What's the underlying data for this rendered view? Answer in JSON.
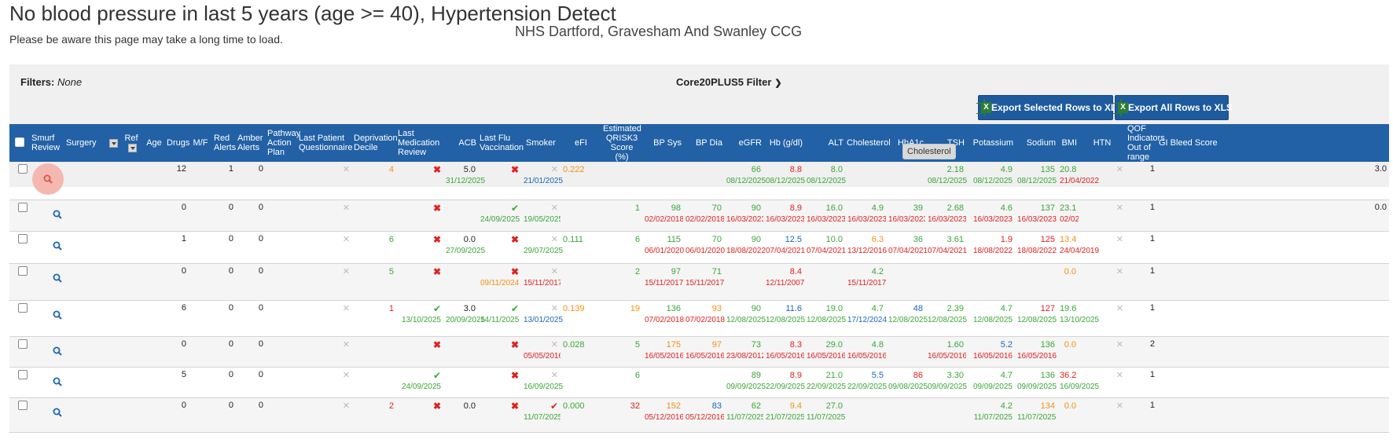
{
  "page": {
    "title": "No blood pressure in last 5 years (age >= 40), Hypertension Detect",
    "subtitle": "Please be aware this page may take a long time to load.",
    "ccg": "NHS Dartford, Gravesham And Swanley CCG"
  },
  "filters": {
    "label": "Filters:",
    "value": "None"
  },
  "core20_filter": {
    "label": "Core20PLUS5 Filter",
    "icon": "chevron-down-icon"
  },
  "export": {
    "selected_label": "Export Selected Rows to XLS",
    "all_label": "Export All Rows to XLS",
    "icon": "excel-icon"
  },
  "tooltip": "Cholesterol",
  "colors": {
    "header_bg": "#2261a6",
    "green": "#3aa637",
    "red": "#e02020",
    "orange": "#f39012",
    "blue": "#1a66b8",
    "highlight": "#f4b8b0"
  },
  "columns": {
    "smurf": "Smurf Review",
    "surgery": "Surgery",
    "ref": "Ref",
    "age": "Age",
    "drugs": "Drugs",
    "mf": "M/F",
    "red": "Red Alerts",
    "amber": "Amber Alerts",
    "pathway": "Pathway Action Plan",
    "lpq": "Last Patient Questionnaire",
    "dep": "Deprivation Decile",
    "lmr": "Last Medication Review",
    "acb": "ACB",
    "flu": "Last Flu Vaccination",
    "smoker": "Smoker",
    "efi": "eFI",
    "qrisk": "Estimated QRISK3 Score (%)",
    "bpsys": "BP Sys",
    "bpdia": "BP Dia",
    "egfr": "eGFR",
    "hb": "Hb (g/dl)",
    "alt": "ALT",
    "chol": "Cholesterol",
    "hba1c": "HbA1c",
    "tsh": "TSH",
    "k": "Potassium",
    "na": "Sodium",
    "bmi": "BMI",
    "htn": "HTN",
    "qof": "QOF Indicators Out of range",
    "gi": "GI Bleed Score"
  },
  "rows": [
    {
      "drugs": "12",
      "red": "1",
      "amber": "0",
      "dep": {
        "v": "4",
        "c": "orange"
      },
      "lmr": "cross",
      "acb": {
        "v": "5.0",
        "c": "black",
        "d": "31/12/2025",
        "dc": "green"
      },
      "flu": "cross",
      "smoker": {
        "v": "✕",
        "c": "grey",
        "d": "21/01/2025",
        "dc": "blue"
      },
      "efi": {
        "v": "0.222",
        "c": "orange"
      },
      "qrisk": null,
      "bpsys": null,
      "bpdia": null,
      "egfr": {
        "v": "66",
        "c": "green",
        "d": "08/12/2025",
        "dc": "green"
      },
      "hb": {
        "v": "8.8",
        "c": "red",
        "d": "08/12/2025",
        "dc": "green"
      },
      "alt": {
        "v": "8.0",
        "c": "green",
        "d": "08/12/2025",
        "dc": "green"
      },
      "chol": null,
      "hba1c": null,
      "tsh": {
        "v": "2.18",
        "c": "green",
        "d": "08/12/2025",
        "dc": "green"
      },
      "k": {
        "v": "4.9",
        "c": "green",
        "d": "08/12/2025",
        "dc": "green"
      },
      "na": {
        "v": "135",
        "c": "green",
        "d": "08/12/2025",
        "dc": "green"
      },
      "bmi": {
        "v": "20.8",
        "c": "green",
        "d": "21/04/2022",
        "dc": "red"
      },
      "qof": "1",
      "gi": "3.0"
    },
    {
      "drugs": "0",
      "red": "0",
      "amber": "0",
      "dep": null,
      "lmr": "cross",
      "acb": null,
      "flu": {
        "tick": true,
        "d": "24/09/2025",
        "dc": "green"
      },
      "smoker": {
        "v": "✕",
        "c": "grey",
        "d": "19/05/2025",
        "dc": "green"
      },
      "efi": null,
      "qrisk": {
        "v": "1",
        "c": "green"
      },
      "bpsys": {
        "v": "98",
        "c": "green",
        "d": "02/02/2018",
        "dc": "red"
      },
      "bpdia": {
        "v": "70",
        "c": "green",
        "d": "02/02/2018",
        "dc": "red"
      },
      "egfr": {
        "v": "90",
        "c": "green",
        "d": "16/03/2023",
        "dc": "red"
      },
      "hb": {
        "v": "8.9",
        "c": "red",
        "d": "16/03/2023",
        "dc": "red"
      },
      "alt": {
        "v": "16.0",
        "c": "green",
        "d": "16/03/2023",
        "dc": "red"
      },
      "chol": {
        "v": "4.9",
        "c": "green",
        "d": "16/03/2023",
        "dc": "red"
      },
      "hba1c": {
        "v": "39",
        "c": "green",
        "d": "16/03/2023",
        "dc": "red"
      },
      "tsh": {
        "v": "2.68",
        "c": "green",
        "d": "16/03/2023",
        "dc": "red"
      },
      "k": {
        "v": "4.6",
        "c": "green",
        "d": "16/03/2023",
        "dc": "red"
      },
      "na": {
        "v": "137",
        "c": "green",
        "d": "16/03/2023",
        "dc": "red"
      },
      "bmi": {
        "v": "23.1",
        "c": "green",
        "d": "02/02/2018",
        "dc": "red"
      },
      "qof": "1",
      "gi": "0.0"
    },
    {
      "drugs": "1",
      "red": "0",
      "amber": "0",
      "dep": {
        "v": "6",
        "c": "green"
      },
      "lmr": "cross",
      "acb": {
        "v": "0.0",
        "c": "black",
        "d": "27/09/2025",
        "dc": "green"
      },
      "flu": "cross",
      "smoker": {
        "v": "✕",
        "c": "grey",
        "d": "29/07/2025",
        "dc": "green"
      },
      "efi": {
        "v": "0.111",
        "c": "green"
      },
      "qrisk": {
        "v": "6",
        "c": "green"
      },
      "bpsys": {
        "v": "115",
        "c": "green",
        "d": "06/01/2020",
        "dc": "red"
      },
      "bpdia": {
        "v": "70",
        "c": "green",
        "d": "06/01/2020",
        "dc": "red"
      },
      "egfr": {
        "v": "90",
        "c": "green",
        "d": "18/08/2022",
        "dc": "red"
      },
      "hb": {
        "v": "12.5",
        "c": "blue",
        "d": "07/04/2021",
        "dc": "red"
      },
      "alt": {
        "v": "10.0",
        "c": "green",
        "d": "07/04/2021",
        "dc": "red"
      },
      "chol": {
        "v": "6.3",
        "c": "orange",
        "d": "13/12/2016",
        "dc": "red"
      },
      "hba1c": {
        "v": "36",
        "c": "green",
        "d": "07/04/2021",
        "dc": "red"
      },
      "tsh": {
        "v": "3.61",
        "c": "green",
        "d": "07/04/2021",
        "dc": "red"
      },
      "k": {
        "v": "1.9",
        "c": "red",
        "d": "18/08/2022",
        "dc": "red"
      },
      "na": {
        "v": "125",
        "c": "red",
        "d": "18/08/2022",
        "dc": "red"
      },
      "bmi": {
        "v": "13.4",
        "c": "orange",
        "d": "24/04/2019",
        "dc": "red"
      },
      "qof": "1",
      "gi": ""
    },
    {
      "drugs": "0",
      "red": "0",
      "amber": "0",
      "dep": {
        "v": "5",
        "c": "green"
      },
      "lmr": "cross",
      "acb": null,
      "flu": {
        "cross": true,
        "d": "09/11/2024",
        "dc": "orange"
      },
      "smoker": {
        "v": "✕",
        "c": "grey",
        "d": "15/11/2017",
        "dc": "red"
      },
      "efi": null,
      "qrisk": {
        "v": "2",
        "c": "green"
      },
      "bpsys": {
        "v": "97",
        "c": "green",
        "d": "15/11/2017",
        "dc": "red"
      },
      "bpdia": {
        "v": "71",
        "c": "green",
        "d": "15/11/2017",
        "dc": "red"
      },
      "egfr": null,
      "hb": {
        "v": "8.4",
        "c": "red",
        "d": "12/11/2007",
        "dc": "red"
      },
      "alt": null,
      "chol": {
        "v": "4.2",
        "c": "green",
        "d": "15/11/2017",
        "dc": "red"
      },
      "hba1c": null,
      "tsh": null,
      "k": null,
      "na": null,
      "bmi": {
        "v": "0.0",
        "c": "orange"
      },
      "qof": "1",
      "gi": ""
    },
    {
      "drugs": "6",
      "red": "0",
      "amber": "0",
      "dep": {
        "v": "1",
        "c": "red"
      },
      "lmr": {
        "tick": true,
        "d": "13/10/2025",
        "dc": "green"
      },
      "acb": {
        "v": "3.0",
        "c": "black",
        "d": "20/09/2025",
        "dc": "green"
      },
      "flu": {
        "tick": true,
        "d": "14/11/2025",
        "dc": "green"
      },
      "smoker": {
        "v": "✕",
        "c": "grey",
        "d": "13/01/2025",
        "dc": "blue"
      },
      "efi": {
        "v": "0.139",
        "c": "orange"
      },
      "qrisk": {
        "v": "19",
        "c": "orange"
      },
      "bpsys": {
        "v": "136",
        "c": "green",
        "d": "07/02/2018",
        "dc": "red"
      },
      "bpdia": {
        "v": "93",
        "c": "orange",
        "d": "07/02/2018",
        "dc": "red"
      },
      "egfr": {
        "v": "90",
        "c": "green",
        "d": "12/08/2025",
        "dc": "green"
      },
      "hb": {
        "v": "11.6",
        "c": "blue",
        "d": "12/08/2025",
        "dc": "green"
      },
      "alt": {
        "v": "19.0",
        "c": "green",
        "d": "12/08/2025",
        "dc": "green"
      },
      "chol": {
        "v": "4.7",
        "c": "green",
        "d": "17/12/2024",
        "dc": "blue"
      },
      "hba1c": {
        "v": "48",
        "c": "blue",
        "d": "12/08/2025",
        "dc": "green"
      },
      "tsh": {
        "v": "2.39",
        "c": "green",
        "d": "12/08/2025",
        "dc": "green"
      },
      "k": {
        "v": "4.7",
        "c": "green",
        "d": "12/08/2025",
        "dc": "green"
      },
      "na": {
        "v": "127",
        "c": "red",
        "d": "12/08/2025",
        "dc": "green"
      },
      "bmi": {
        "v": "19.6",
        "c": "green",
        "d": "13/10/2025",
        "dc": "green"
      },
      "qof": "1",
      "gi": ""
    },
    {
      "drugs": "0",
      "red": "0",
      "amber": "0",
      "dep": null,
      "lmr": "cross",
      "acb": null,
      "flu": "cross",
      "smoker": {
        "v": "✕",
        "c": "grey",
        "d": "05/05/2016",
        "dc": "red"
      },
      "efi": {
        "v": "0.028",
        "c": "green"
      },
      "qrisk": {
        "v": "5",
        "c": "green"
      },
      "bpsys": {
        "v": "175",
        "c": "orange",
        "d": "16/05/2016",
        "dc": "red"
      },
      "bpdia": {
        "v": "97",
        "c": "orange",
        "d": "16/05/2016",
        "dc": "red"
      },
      "egfr": {
        "v": "73",
        "c": "green",
        "d": "23/08/2012",
        "dc": "red"
      },
      "hb": {
        "v": "8.3",
        "c": "red",
        "d": "16/05/2016",
        "dc": "red"
      },
      "alt": {
        "v": "29.0",
        "c": "green",
        "d": "16/05/2016",
        "dc": "red"
      },
      "chol": {
        "v": "4.8",
        "c": "green",
        "d": "16/05/2016",
        "dc": "red"
      },
      "hba1c": null,
      "tsh": {
        "v": "1.60",
        "c": "green",
        "d": "16/05/2016",
        "dc": "red"
      },
      "k": {
        "v": "5.2",
        "c": "blue",
        "d": "16/05/2016",
        "dc": "red"
      },
      "na": {
        "v": "136",
        "c": "green",
        "d": "16/05/2016",
        "dc": "red"
      },
      "bmi": {
        "v": "0.0",
        "c": "orange"
      },
      "qof": "2",
      "gi": ""
    },
    {
      "drugs": "5",
      "red": "0",
      "amber": "0",
      "dep": null,
      "lmr": {
        "tick": true,
        "d": "24/09/2025",
        "dc": "green"
      },
      "acb": null,
      "flu": "cross",
      "smoker": {
        "v": "✕",
        "c": "grey",
        "d": "16/09/2025",
        "dc": "green"
      },
      "efi": null,
      "qrisk": {
        "v": "6",
        "c": "green"
      },
      "bpsys": null,
      "bpdia": null,
      "egfr": {
        "v": "89",
        "c": "green",
        "d": "09/09/2025",
        "dc": "green"
      },
      "hb": {
        "v": "8.9",
        "c": "red",
        "d": "22/09/2025",
        "dc": "green"
      },
      "alt": {
        "v": "21.0",
        "c": "green",
        "d": "22/09/2025",
        "dc": "green"
      },
      "chol": {
        "v": "5.5",
        "c": "blue",
        "d": "22/09/2025",
        "dc": "green"
      },
      "hba1c": {
        "v": "86",
        "c": "red",
        "d": "09/08/2025",
        "dc": "green"
      },
      "tsh": {
        "v": "3.30",
        "c": "green",
        "d": "09/09/2025",
        "dc": "green"
      },
      "k": {
        "v": "4.7",
        "c": "green",
        "d": "09/09/2025",
        "dc": "green"
      },
      "na": {
        "v": "136",
        "c": "green",
        "d": "09/09/2025",
        "dc": "green"
      },
      "bmi": {
        "v": "36.2",
        "c": "red",
        "d": "16/09/2025",
        "dc": "green"
      },
      "qof": "1",
      "gi": ""
    },
    {
      "drugs": "0",
      "red": "0",
      "amber": "0",
      "dep": {
        "v": "2",
        "c": "red"
      },
      "lmr": "cross",
      "acb": {
        "v": "0.0",
        "c": "black"
      },
      "flu": "cross",
      "smoker": {
        "tick_red": true,
        "d": "11/07/2025",
        "dc": "green"
      },
      "efi": {
        "v": "0.000",
        "c": "green"
      },
      "qrisk": {
        "v": "32",
        "c": "red"
      },
      "bpsys": {
        "v": "152",
        "c": "orange",
        "d": "05/12/2016",
        "dc": "red"
      },
      "bpdia": {
        "v": "83",
        "c": "blue",
        "d": "05/12/2016",
        "dc": "red"
      },
      "egfr": {
        "v": "62",
        "c": "green",
        "d": "11/07/2025",
        "dc": "green"
      },
      "hb": {
        "v": "9.4",
        "c": "orange",
        "d": "21/07/2025",
        "dc": "green"
      },
      "alt": {
        "v": "27.0",
        "c": "green",
        "d": "11/07/2025",
        "dc": "green"
      },
      "chol": null,
      "hba1c": null,
      "tsh": null,
      "k": {
        "v": "4.2",
        "c": "green",
        "d": "11/07/2025",
        "dc": "green"
      },
      "na": {
        "v": "134",
        "c": "orange",
        "d": "11/07/2025",
        "dc": "green"
      },
      "bmi": {
        "v": "0.0",
        "c": "orange"
      },
      "qof": "1",
      "gi": ""
    }
  ]
}
